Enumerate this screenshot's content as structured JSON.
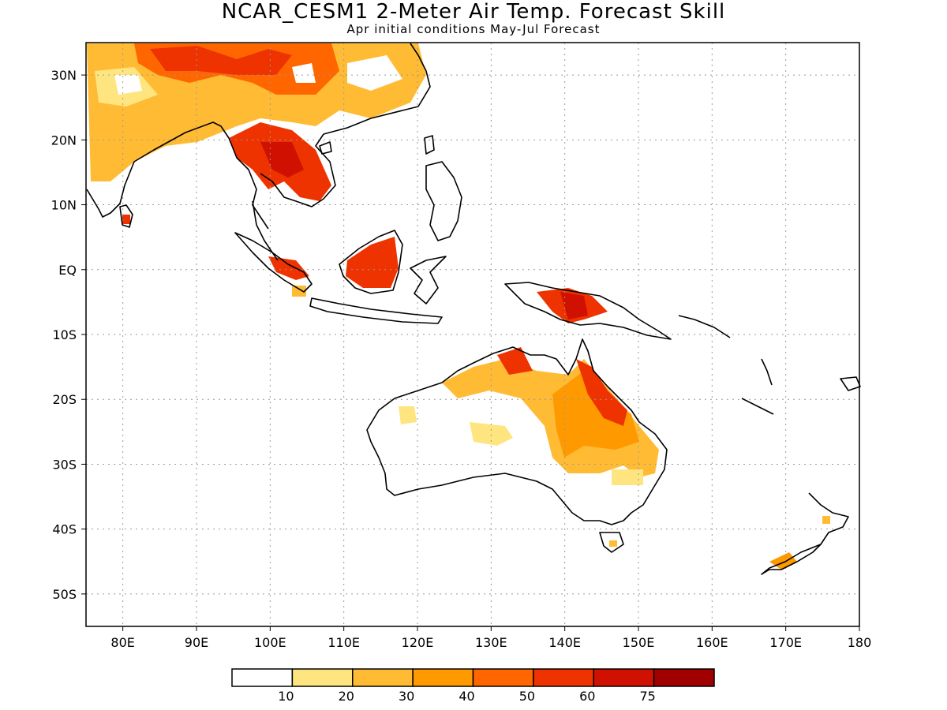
{
  "title": "NCAR_CESM1 2-Meter Air Temp. Forecast Skill",
  "subtitle": "Apr initial conditions  May-Jul Forecast",
  "map": {
    "lon_range": [
      75,
      180
    ],
    "lat_range": [
      -55,
      35
    ],
    "lon_ticks": [
      "80E",
      "90E",
      "100E",
      "110E",
      "120E",
      "130E",
      "140E",
      "150E",
      "160E",
      "170E",
      "180"
    ],
    "lat_ticks": [
      "30N",
      "20N",
      "10N",
      "EQ",
      "10S",
      "20S",
      "30S",
      "40S",
      "50S"
    ],
    "gridlines": true
  },
  "legend": {
    "labels": [
      "10",
      "20",
      "30",
      "40",
      "50",
      "60",
      "75"
    ],
    "colors": [
      "#ffffff",
      "#ffe57f",
      "#ffbb33",
      "#ff9900",
      "#ff6600",
      "#ee3300",
      "#d01000",
      "#a00000"
    ]
  }
}
